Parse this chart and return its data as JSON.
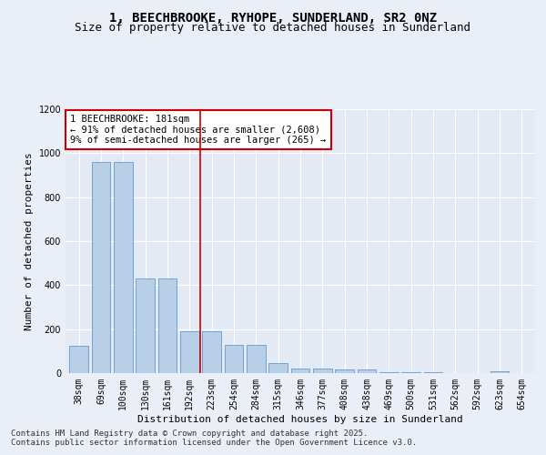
{
  "title": "1, BEECHBROOKE, RYHOPE, SUNDERLAND, SR2 0NZ",
  "subtitle": "Size of property relative to detached houses in Sunderland",
  "xlabel": "Distribution of detached houses by size in Sunderland",
  "ylabel": "Number of detached properties",
  "categories": [
    "38sqm",
    "69sqm",
    "100sqm",
    "130sqm",
    "161sqm",
    "192sqm",
    "223sqm",
    "254sqm",
    "284sqm",
    "315sqm",
    "346sqm",
    "377sqm",
    "408sqm",
    "438sqm",
    "469sqm",
    "500sqm",
    "531sqm",
    "562sqm",
    "592sqm",
    "623sqm",
    "654sqm"
  ],
  "values": [
    125,
    960,
    960,
    430,
    430,
    190,
    190,
    130,
    130,
    45,
    20,
    20,
    15,
    15,
    3,
    3,
    5,
    2,
    2,
    10,
    2
  ],
  "bar_color": "#b8cfe8",
  "bar_edge_color": "#6699cc",
  "vline_x": 5.5,
  "vline_color": "#cc0000",
  "annotation_text_line1": "1 BEECHBROOKE: 181sqm",
  "annotation_text_line2": "← 91% of detached houses are smaller (2,608)",
  "annotation_text_line3": "9% of semi-detached houses are larger (265) →",
  "ylim": [
    0,
    1200
  ],
  "yticks": [
    0,
    200,
    400,
    600,
    800,
    1000,
    1200
  ],
  "bg_color": "#eaeff7",
  "plot_bg_color": "#e4eaf4",
  "grid_color": "#ffffff",
  "footer_line1": "Contains HM Land Registry data © Crown copyright and database right 2025.",
  "footer_line2": "Contains public sector information licensed under the Open Government Licence v3.0.",
  "title_fontsize": 10,
  "subtitle_fontsize": 9,
  "axis_label_fontsize": 8,
  "tick_fontsize": 7,
  "annotation_fontsize": 7.5,
  "footer_fontsize": 6.5
}
